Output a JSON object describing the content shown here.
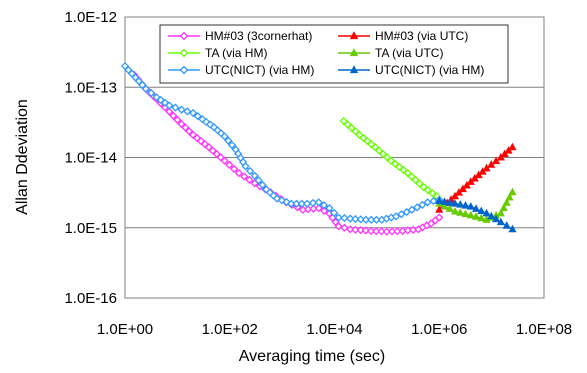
{
  "chart_data": {
    "type": "line",
    "xscale": "log",
    "yscale": "log",
    "xlabel": "Averaging time (sec)",
    "ylabel": "Allan Ddeviation",
    "xlim": [
      1,
      100000000
    ],
    "ylim": [
      1e-16,
      1e-12
    ],
    "grid": "horizontal",
    "legend_position": "top",
    "xticks": [
      "1.0E+00",
      "1.0E+02",
      "1.0E+04",
      "1.0E+06",
      "1.0E+08"
    ],
    "yticks": [
      "1.0E-16",
      "1.0E-15",
      "1.0E-14",
      "1.0E-13",
      "1.0E-12"
    ],
    "series": [
      {
        "name": "HM#03 (3cornerhat)",
        "color": "#ff33ff",
        "marker": "diamond",
        "points": [
          [
            1.5,
            1.5e-13
          ],
          [
            2.5,
            9.5e-14
          ],
          [
            4,
            6.8e-14
          ],
          [
            7,
            4.5e-14
          ],
          [
            12,
            3e-14
          ],
          [
            20,
            2.1e-14
          ],
          [
            40,
            1.4e-14
          ],
          [
            80,
            9e-15
          ],
          [
            150,
            6e-15
          ],
          [
            300,
            4.3e-15
          ],
          [
            600,
            3.2e-15
          ],
          [
            1200,
            2.3e-15
          ],
          [
            2500,
            1.8e-15
          ],
          [
            5000,
            1.9e-15
          ],
          [
            8000,
            1.6e-15
          ],
          [
            12000,
            1.05e-15
          ],
          [
            20000,
            9.5e-16
          ],
          [
            50000,
            9e-16
          ],
          [
            100000,
            8.8e-16
          ],
          [
            200000,
            9e-16
          ],
          [
            400000,
            9.5e-16
          ],
          [
            700000,
            1.15e-15
          ],
          [
            1000000,
            1.4e-15
          ]
        ]
      },
      {
        "name": "HM#03 (via UTC)",
        "color": "#ff0000",
        "marker": "triangle",
        "points": [
          [
            1000000,
            1.8e-15
          ],
          [
            2000000,
            2.8e-15
          ],
          [
            4000000,
            4.5e-15
          ],
          [
            8000000,
            7e-15
          ],
          [
            15000000,
            1e-14
          ],
          [
            25000000,
            1.4e-14
          ]
        ]
      },
      {
        "name": "TA (via HM)",
        "color": "#66ff00",
        "marker": "diamond",
        "points": [
          [
            15000,
            3.3e-14
          ],
          [
            30000,
            2.1e-14
          ],
          [
            60000,
            1.4e-14
          ],
          [
            120000,
            9e-15
          ],
          [
            250000,
            6e-15
          ],
          [
            500000,
            3.8e-15
          ],
          [
            900000,
            2.8e-15
          ]
        ]
      },
      {
        "name": "TA (via UTC)",
        "color": "#66cc00",
        "marker": "triangle",
        "points": [
          [
            1000000,
            2.2e-15
          ],
          [
            2000000,
            1.7e-15
          ],
          [
            4000000,
            1.5e-15
          ],
          [
            8000000,
            1.3e-15
          ],
          [
            15000000,
            1.6e-15
          ],
          [
            25000000,
            3.2e-15
          ]
        ]
      },
      {
        "name": "UTC(NICT) (via HM)",
        "color": "#3399ff",
        "marker": "diamond",
        "points": [
          [
            1,
            2e-13
          ],
          [
            2.5,
            9.5e-14
          ],
          [
            4,
            7.2e-14
          ],
          [
            7,
            5.5e-14
          ],
          [
            12,
            4.8e-14
          ],
          [
            20,
            4.3e-14
          ],
          [
            30,
            3.5e-14
          ],
          [
            50,
            2.7e-14
          ],
          [
            80,
            2e-14
          ],
          [
            130,
            1.3e-14
          ],
          [
            200,
            7.5e-15
          ],
          [
            300,
            5.5e-15
          ],
          [
            500,
            3.5e-15
          ],
          [
            800,
            2.6e-15
          ],
          [
            1500,
            2.2e-15
          ],
          [
            3000,
            2.2e-15
          ],
          [
            5000,
            2.3e-15
          ],
          [
            8000,
            1.9e-15
          ],
          [
            12000,
            1.4e-15
          ],
          [
            20000,
            1.35e-15
          ],
          [
            40000,
            1.3e-15
          ],
          [
            80000,
            1.3e-15
          ],
          [
            150000,
            1.45e-15
          ],
          [
            300000,
            1.8e-15
          ],
          [
            600000,
            2.3e-15
          ],
          [
            1000000,
            2.5e-15
          ]
        ]
      },
      {
        "name": "UTC(NICT) (via HM)",
        "color": "#0066cc",
        "marker": "triangle",
        "points": [
          [
            1000000,
            2.4e-15
          ],
          [
            2000000,
            2.2e-15
          ],
          [
            4000000,
            2e-15
          ],
          [
            8000000,
            1.6e-15
          ],
          [
            15000000,
            1.2e-15
          ],
          [
            25000000,
            9.5e-16
          ]
        ]
      }
    ]
  }
}
